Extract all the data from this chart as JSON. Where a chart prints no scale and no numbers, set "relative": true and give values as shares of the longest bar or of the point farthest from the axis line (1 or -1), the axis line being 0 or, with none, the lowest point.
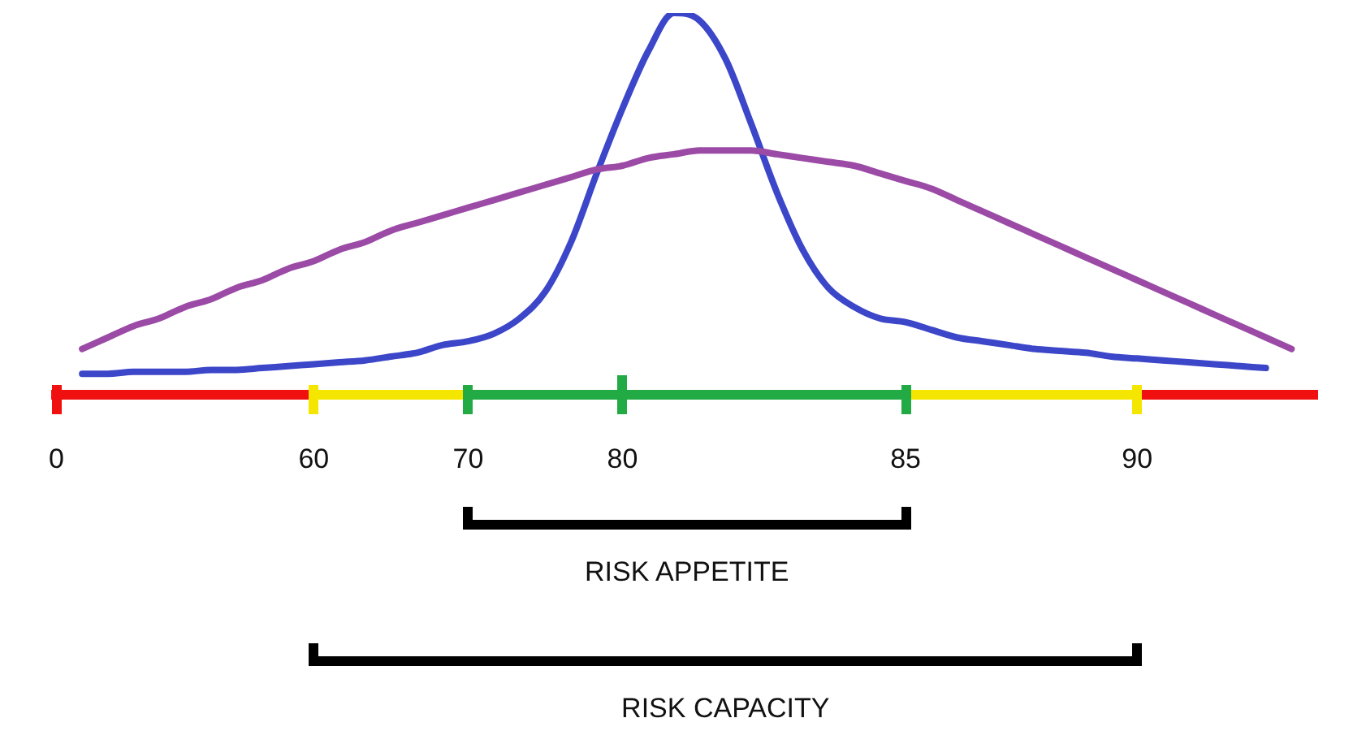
{
  "chart_data": {
    "type": "line",
    "relative": true,
    "categories": [
      "0",
      null,
      null,
      null,
      null,
      null,
      null,
      null,
      null,
      null,
      "60",
      null,
      null,
      null,
      null,
      null,
      "70",
      null,
      null,
      null,
      null,
      null,
      "80",
      null,
      null,
      null,
      null,
      null,
      null,
      null,
      null,
      null,
      null,
      "85",
      null,
      null,
      null,
      null,
      null,
      null,
      null,
      null,
      "90",
      null,
      null,
      null,
      null,
      null,
      null,
      null
    ],
    "series": [
      {
        "color": "#9b4ba6",
        "values": [
          null,
          0.12,
          0.15,
          0.18,
          0.2,
          0.23,
          0.25,
          0.28,
          0.3,
          0.33,
          0.35,
          0.38,
          0.4,
          0.43,
          0.45,
          0.47,
          0.49,
          0.51,
          0.53,
          0.55,
          0.57,
          0.59,
          0.6,
          0.62,
          0.63,
          0.64,
          0.64,
          0.64,
          0.63,
          0.62,
          0.61,
          0.6,
          0.58,
          0.56,
          0.54,
          0.51,
          0.48,
          0.45,
          0.42,
          0.39,
          0.36,
          0.33,
          0.3,
          0.27,
          0.24,
          0.21,
          0.18,
          0.15,
          0.12,
          null
        ]
      },
      {
        "color": "#3c46c8",
        "values": [
          null,
          0.055,
          0.055,
          0.06,
          0.06,
          0.06,
          0.065,
          0.065,
          0.07,
          0.075,
          0.08,
          0.085,
          0.09,
          0.1,
          0.11,
          0.13,
          0.14,
          0.16,
          0.2,
          0.27,
          0.4,
          0.58,
          0.75,
          0.9,
          1,
          0.98,
          0.88,
          0.71,
          0.53,
          0.38,
          0.28,
          0.23,
          0.2,
          0.19,
          0.17,
          0.15,
          0.14,
          0.13,
          0.12,
          0.115,
          0.11,
          0.1,
          0.095,
          0.09,
          0.085,
          0.08,
          0.075,
          0.07,
          null,
          null
        ]
      }
    ],
    "annotations": [
      "RISK APPETITE",
      "RISK CAPACITY"
    ],
    "legend": false,
    "grid": false,
    "marker": "none",
    "line_style": "solid"
  }
}
